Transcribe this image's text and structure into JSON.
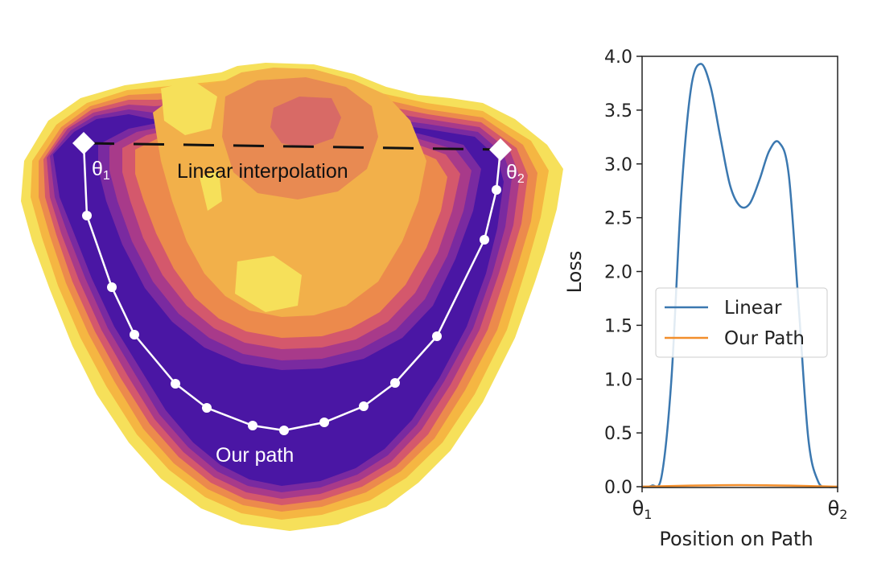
{
  "landscape": {
    "linear_label": "Linear interpolation",
    "path_label": "Our path",
    "theta1_label": "θ",
    "theta1_sub": "1",
    "theta2_label": "θ",
    "theta2_sub": "2",
    "colors": {
      "outer": "#f6e05a",
      "ring2": "#f5b642",
      "ring3": "#ec8a4c",
      "ring4": "#d4586c",
      "ring5": "#a83a8a",
      "ring6": "#7a2aa0",
      "valley": "#4a16a4",
      "plateau": "#f2b04a",
      "peak_mid": "#e88a52",
      "peak_top": "#d86a66",
      "path": "#ffffff",
      "dash": "#111111"
    }
  },
  "chart_data": {
    "type": "line",
    "title": "",
    "xlabel": "Position on Path",
    "ylabel": "Loss",
    "xlim": [
      0,
      1
    ],
    "ylim": [
      0,
      4.0
    ],
    "y_ticks": [
      0.0,
      0.5,
      1.0,
      1.5,
      2.0,
      2.5,
      3.0,
      3.5,
      4.0
    ],
    "y_tick_labels": [
      "0.0",
      "0.5",
      "1.0",
      "1.5",
      "2.0",
      "2.5",
      "3.0",
      "3.5",
      "4.0"
    ],
    "x_tick_labels": [
      {
        "x": 0,
        "base": "θ",
        "sub": "1"
      },
      {
        "x": 1,
        "base": "θ",
        "sub": "2"
      }
    ],
    "legend_position": "center-right",
    "series": [
      {
        "name": "Linear",
        "color": "#3b78b0",
        "x": [
          0.0,
          0.05,
          0.1,
          0.15,
          0.2,
          0.25,
          0.3,
          0.35,
          0.4,
          0.45,
          0.5,
          0.55,
          0.6,
          0.65,
          0.7,
          0.75,
          0.8,
          0.85,
          0.9,
          0.95,
          1.0
        ],
        "values": [
          0.0,
          0.01,
          0.1,
          1.0,
          2.7,
          3.7,
          3.93,
          3.72,
          3.25,
          2.8,
          2.61,
          2.63,
          2.85,
          3.12,
          3.2,
          2.9,
          1.7,
          0.45,
          0.05,
          0.0,
          0.0
        ]
      },
      {
        "name": "Our Path",
        "color": "#f28e2b",
        "x": [
          0.0,
          0.25,
          0.5,
          0.75,
          1.0
        ],
        "values": [
          0.0,
          0.01,
          0.015,
          0.01,
          0.0
        ]
      }
    ]
  }
}
